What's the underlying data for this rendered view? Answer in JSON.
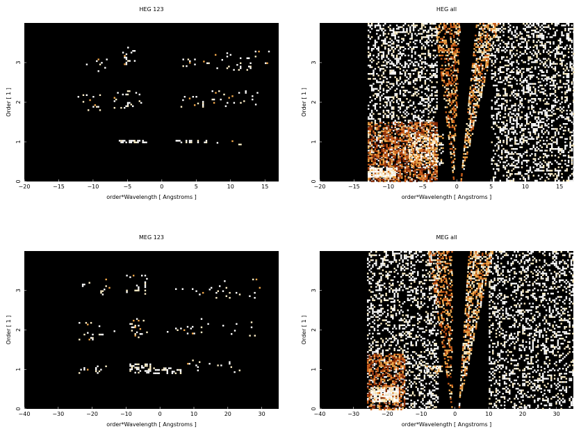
{
  "chart_data": [
    {
      "type": "heatmap",
      "title": "HEG 123",
      "xlabel": "order*Wavelength [ Angstroms ]",
      "ylabel": "Order [ 1 ]",
      "xlim": [
        -20,
        17
      ],
      "ylim": [
        0,
        4
      ],
      "xticks": [
        "−20",
        "−15",
        "−10",
        "−5",
        "0",
        "5",
        "10",
        "15"
      ],
      "yticks": [
        "0",
        "1",
        "2",
        "3"
      ],
      "background": "#000000",
      "colormap": [
        "#3a0800",
        "#8a2a05",
        "#d0601a",
        "#f2a84a",
        "#fff0c8",
        "#ffffff"
      ],
      "bands": [
        {
          "x": [
            -12.5,
            -9.5
          ],
          "y": [
            0.98,
            1.04
          ],
          "density": 0.1,
          "level": 0.8
        },
        {
          "x": [
            -6.5,
            -2
          ],
          "y": [
            0.97,
            1.05
          ],
          "density": 0.55,
          "level": 0.92
        },
        {
          "x": [
            2,
            6.5
          ],
          "y": [
            0.97,
            1.05
          ],
          "density": 0.45,
          "level": 0.92
        },
        {
          "x": [
            7,
            12
          ],
          "y": [
            0.95,
            1.08
          ],
          "density": 0.06,
          "level": 0.85
        },
        {
          "x": [
            -12.5,
            -9
          ],
          "y": [
            1.8,
            2.2
          ],
          "density": 0.08,
          "level": 0.85
        },
        {
          "x": [
            -7,
            -3
          ],
          "y": [
            1.85,
            2.3
          ],
          "density": 0.12,
          "level": 0.85
        },
        {
          "x": [
            2,
            6
          ],
          "y": [
            1.9,
            2.2
          ],
          "density": 0.1,
          "level": 0.85
        },
        {
          "x": [
            7,
            14
          ],
          "y": [
            1.9,
            2.3
          ],
          "density": 0.06,
          "level": 0.85
        },
        {
          "x": [
            -12,
            -8
          ],
          "y": [
            2.8,
            3.1
          ],
          "density": 0.06,
          "level": 0.85
        },
        {
          "x": [
            -6,
            -4
          ],
          "y": [
            2.9,
            3.4
          ],
          "density": 0.12,
          "level": 0.85
        },
        {
          "x": [
            3,
            5
          ],
          "y": [
            2.9,
            3.1
          ],
          "density": 0.14,
          "level": 0.85
        },
        {
          "x": [
            6,
            16
          ],
          "y": [
            2.8,
            3.3
          ],
          "density": 0.05,
          "level": 0.85
        }
      ]
    },
    {
      "type": "heatmap",
      "title": "HEG all",
      "xlabel": "order*Wavelength [ Angstroms ]",
      "ylabel": "Order [ 1 ]",
      "xlim": [
        -20,
        17
      ],
      "ylim": [
        0,
        4
      ],
      "xticks": [
        "−20",
        "−15",
        "−10",
        "−5",
        "0",
        "5",
        "10",
        "15"
      ],
      "yticks": [
        "0",
        "1",
        "2",
        "3"
      ],
      "background": "#000000",
      "colormap": [
        "#3a0800",
        "#8a2a05",
        "#d0601a",
        "#f2a84a",
        "#fff0c8",
        "#ffffff"
      ],
      "bands": [
        {
          "x": [
            -13,
            -3
          ],
          "y": [
            0,
            4
          ],
          "density": 0.32,
          "level": 0.95
        },
        {
          "x": [
            5,
            17
          ],
          "y": [
            0,
            4
          ],
          "density": 0.32,
          "level": 0.95
        },
        {
          "x": [
            -13,
            -3
          ],
          "y": [
            0,
            1.5
          ],
          "density": 0.55,
          "level": 0.4
        },
        {
          "x": [
            -13,
            -9
          ],
          "y": [
            0.1,
            0.35
          ],
          "density": 0.8,
          "level": 0.9
        },
        {
          "x": [
            -7,
            -2
          ],
          "y": [
            0.4,
            1.2
          ],
          "density": 0.45,
          "level": 0.75
        }
      ],
      "wedges": [
        {
          "x0": -0.5,
          "y0": 0,
          "left": -3.2,
          "right": 0.4,
          "density": 0.45,
          "level": 0.55
        },
        {
          "x0": 0.5,
          "y0": 0,
          "left": 2.8,
          "right": 6,
          "density": 0.6,
          "level": 0.65
        }
      ]
    },
    {
      "type": "heatmap",
      "title": "MEG 123",
      "xlabel": "order*Wavelength [ Angstroms ]",
      "ylabel": "Order [ 1 ]",
      "xlim": [
        -40,
        35
      ],
      "ylim": [
        0,
        4
      ],
      "xticks": [
        "−40",
        "−30",
        "−20",
        "−10",
        "0",
        "10",
        "20",
        "30"
      ],
      "yticks": [
        "0",
        "1",
        "2",
        "3"
      ],
      "background": "#000000",
      "colormap": [
        "#3a0800",
        "#8a2a05",
        "#d0601a",
        "#f2a84a",
        "#fff0c8",
        "#ffffff"
      ],
      "bands": [
        {
          "x": [
            -25,
            -16
          ],
          "y": [
            0.9,
            1.1
          ],
          "density": 0.06,
          "level": 0.85
        },
        {
          "x": [
            -9,
            -3
          ],
          "y": [
            0.9,
            1.15
          ],
          "density": 0.45,
          "level": 0.92
        },
        {
          "x": [
            -2,
            6
          ],
          "y": [
            0.92,
            1.05
          ],
          "density": 0.4,
          "level": 0.92
        },
        {
          "x": [
            8,
            26
          ],
          "y": [
            0.95,
            1.25
          ],
          "density": 0.04,
          "level": 0.85
        },
        {
          "x": [
            -24,
            -12
          ],
          "y": [
            1.7,
            2.2
          ],
          "density": 0.04,
          "level": 0.85
        },
        {
          "x": [
            -9,
            -4
          ],
          "y": [
            1.8,
            2.3
          ],
          "density": 0.16,
          "level": 0.85
        },
        {
          "x": [
            2,
            10
          ],
          "y": [
            1.9,
            2.1
          ],
          "density": 0.1,
          "level": 0.85
        },
        {
          "x": [
            12,
            28
          ],
          "y": [
            1.8,
            2.3
          ],
          "density": 0.04,
          "level": 0.85
        },
        {
          "x": [
            -24,
            -14
          ],
          "y": [
            2.9,
            3.3
          ],
          "density": 0.05,
          "level": 0.85
        },
        {
          "x": [
            -10,
            -4
          ],
          "y": [
            2.9,
            3.4
          ],
          "density": 0.12,
          "level": 0.85
        },
        {
          "x": [
            3,
            10
          ],
          "y": [
            2.9,
            3.1
          ],
          "density": 0.08,
          "level": 0.85
        },
        {
          "x": [
            10,
            32
          ],
          "y": [
            2.8,
            3.3
          ],
          "density": 0.04,
          "level": 0.85
        }
      ]
    },
    {
      "type": "heatmap",
      "title": "MEG all",
      "xlabel": "order*Wavelength [ Angstroms ]",
      "ylabel": "Order [ 1 ]",
      "xlim": [
        -40,
        35
      ],
      "ylim": [
        0,
        4
      ],
      "xticks": [
        "−40",
        "−30",
        "−20",
        "−10",
        "0",
        "10",
        "20",
        "30"
      ],
      "yticks": [
        "0",
        "1",
        "2",
        "3"
      ],
      "background": "#000000",
      "colormap": [
        "#3a0800",
        "#8a2a05",
        "#d0601a",
        "#f2a84a",
        "#fff0c8",
        "#ffffff"
      ],
      "bands": [
        {
          "x": [
            -26,
            -5
          ],
          "y": [
            0,
            4
          ],
          "density": 0.3,
          "level": 0.95
        },
        {
          "x": [
            10,
            35
          ],
          "y": [
            0,
            4
          ],
          "density": 0.28,
          "level": 0.95
        },
        {
          "x": [
            -26,
            -15
          ],
          "y": [
            0,
            1.4
          ],
          "density": 0.55,
          "level": 0.4
        },
        {
          "x": [
            -25,
            -17
          ],
          "y": [
            0.2,
            0.55
          ],
          "density": 0.8,
          "level": 0.9
        },
        {
          "x": [
            -9,
            -4
          ],
          "y": [
            0.9,
            1.1
          ],
          "density": 0.6,
          "level": 0.85
        }
      ],
      "wedges": [
        {
          "x0": -1,
          "y0": 0,
          "left": -8,
          "right": -1,
          "density": 0.45,
          "level": 0.55
        },
        {
          "x0": 1,
          "y0": 0,
          "left": 4,
          "right": 11,
          "density": 0.6,
          "level": 0.65
        }
      ]
    }
  ]
}
